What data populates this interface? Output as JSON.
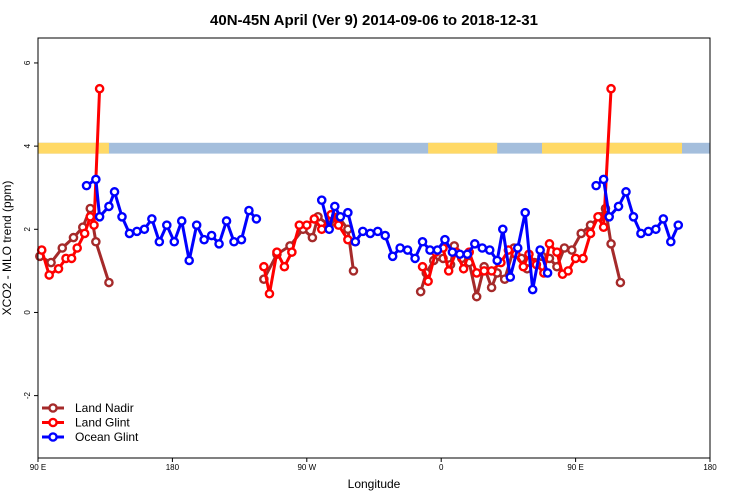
{
  "chart_data": {
    "type": "line",
    "title": "40N-45N April (Ver 9)   2014-09-06 to 2018-12-31",
    "xlabel": "Longitude",
    "ylabel": "XCO2 - MLO trend (ppm)",
    "xlim": [
      90,
      450
    ],
    "ylim": [
      -3.5,
      6.6
    ],
    "x_ticks": [
      {
        "value": 90,
        "label": "90 E"
      },
      {
        "value": 162,
        "label": "180"
      },
      {
        "value": 234,
        "label": "90 W"
      },
      {
        "value": 306,
        "label": "0"
      },
      {
        "value": 378,
        "label": "90 E"
      },
      {
        "value": 450,
        "label": "180"
      }
    ],
    "y_ticks": [
      {
        "value": -2,
        "label": "-2"
      },
      {
        "value": 0,
        "label": "0"
      },
      {
        "value": 2,
        "label": "2"
      },
      {
        "value": 4,
        "label": "4"
      },
      {
        "value": 6,
        "label": "6"
      }
    ],
    "land_band": {
      "y_low": 3.82,
      "y_high": 4.08,
      "land_color": "#ffd966",
      "ocean_color": "#a4bedc",
      "land_ranges": [
        [
          90,
          128
        ],
        [
          299,
          336
        ],
        [
          360,
          435
        ]
      ]
    },
    "legend_position": "bottom-left",
    "series": [
      {
        "name": "Land Nadir",
        "color": "#a52a2a",
        "points": [
          [
            91,
            1.35
          ],
          [
            97,
            1.2
          ],
          [
            103,
            1.55
          ],
          [
            109,
            1.8
          ],
          [
            114,
            2.05
          ],
          [
            118,
            2.5
          ],
          [
            121,
            1.7
          ],
          [
            128,
            0.72
          ],
          [
            null,
            null
          ],
          [
            211,
            0.8
          ],
          [
            218,
            1.4
          ],
          [
            225,
            1.6
          ],
          [
            232,
            2.0
          ],
          [
            237,
            1.8
          ],
          [
            240,
            2.3
          ],
          [
            246,
            2.1
          ],
          [
            251,
            2.3
          ],
          [
            256,
            2.0
          ],
          [
            259,
            1.0
          ],
          [
            null,
            null
          ],
          [
            295,
            0.5
          ],
          [
            298,
            0.95
          ],
          [
            302,
            1.25
          ],
          [
            307,
            1.3
          ],
          [
            311,
            1.15
          ],
          [
            313,
            1.6
          ],
          [
            317,
            1.3
          ],
          [
            321,
            1.2
          ],
          [
            325,
            0.38
          ],
          [
            329,
            1.1
          ],
          [
            333,
            0.6
          ],
          [
            336,
            0.95
          ],
          [
            340,
            0.8
          ],
          [
            345,
            1.55
          ],
          [
            349,
            1.3
          ],
          [
            352,
            1.05
          ],
          [
            356,
            1.2
          ],
          [
            360,
            1.35
          ],
          [
            364,
            1.3
          ],
          [
            368,
            1.1
          ],
          [
            372,
            1.55
          ],
          [
            376,
            1.5
          ],
          [
            381,
            1.9
          ],
          [
            386,
            2.1
          ],
          [
            391,
            2.3
          ],
          [
            394,
            2.5
          ],
          [
            397,
            1.65
          ],
          [
            402,
            0.72
          ]
        ]
      },
      {
        "name": "Land Glint",
        "color": "#ff0000",
        "points": [
          [
            92,
            1.5
          ],
          [
            96,
            0.9
          ],
          [
            101,
            1.05
          ],
          [
            105,
            1.3
          ],
          [
            108,
            1.3
          ],
          [
            111,
            1.55
          ],
          [
            115,
            1.9
          ],
          [
            118,
            2.3
          ],
          [
            120,
            2.1
          ],
          [
            123,
            5.38
          ],
          [
            null,
            null
          ],
          [
            211,
            1.1
          ],
          [
            214,
            0.45
          ],
          [
            218,
            1.45
          ],
          [
            222,
            1.1
          ],
          [
            226,
            1.45
          ],
          [
            230,
            2.1
          ],
          [
            234,
            2.1
          ],
          [
            238,
            2.25
          ],
          [
            242,
            2.0
          ],
          [
            247,
            2.35
          ],
          [
            251,
            2.1
          ],
          [
            256,
            1.75
          ],
          [
            260,
            1.7
          ],
          [
            null,
            null
          ],
          [
            296,
            1.1
          ],
          [
            299,
            0.75
          ],
          [
            303,
            1.45
          ],
          [
            307,
            1.55
          ],
          [
            310,
            1.0
          ],
          [
            314,
            1.45
          ],
          [
            318,
            1.05
          ],
          [
            321,
            1.45
          ],
          [
            325,
            0.95
          ],
          [
            329,
            1.0
          ],
          [
            333,
            1.0
          ],
          [
            338,
            1.2
          ],
          [
            342,
            1.5
          ],
          [
            346,
            1.4
          ],
          [
            350,
            1.1
          ],
          [
            353,
            1.4
          ],
          [
            357,
            1.15
          ],
          [
            361,
            0.95
          ],
          [
            364,
            1.65
          ],
          [
            368,
            1.45
          ],
          [
            371,
            0.92
          ],
          [
            374,
            1.0
          ],
          [
            378,
            1.3
          ],
          [
            382,
            1.3
          ],
          [
            386,
            1.9
          ],
          [
            390,
            2.3
          ],
          [
            393,
            2.05
          ],
          [
            397,
            5.38
          ]
        ]
      },
      {
        "name": "Ocean Glint",
        "color": "#0000ff",
        "points": [
          [
            116,
            3.05
          ],
          [
            121,
            3.2
          ],
          [
            123,
            2.3
          ],
          [
            128,
            2.55
          ],
          [
            131,
            2.9
          ],
          [
            135,
            2.3
          ],
          [
            139,
            1.9
          ],
          [
            143,
            1.95
          ],
          [
            147,
            2.0
          ],
          [
            151,
            2.25
          ],
          [
            155,
            1.7
          ],
          [
            159,
            2.1
          ],
          [
            163,
            1.7
          ],
          [
            167,
            2.2
          ],
          [
            171,
            1.25
          ],
          [
            175,
            2.1
          ],
          [
            179,
            1.75
          ],
          [
            183,
            1.85
          ],
          [
            187,
            1.65
          ],
          [
            191,
            2.2
          ],
          [
            195,
            1.7
          ],
          [
            199,
            1.75
          ],
          [
            203,
            2.45
          ],
          [
            207,
            2.25
          ],
          [
            null,
            null
          ],
          [
            242,
            2.7
          ],
          [
            246,
            2.0
          ],
          [
            249,
            2.55
          ],
          [
            252,
            2.3
          ],
          [
            256,
            2.4
          ],
          [
            260,
            1.7
          ],
          [
            264,
            1.95
          ],
          [
            268,
            1.9
          ],
          [
            272,
            1.95
          ],
          [
            276,
            1.85
          ],
          [
            280,
            1.35
          ],
          [
            284,
            1.55
          ],
          [
            288,
            1.5
          ],
          [
            292,
            1.3
          ],
          [
            296,
            1.7
          ],
          [
            300,
            1.5
          ],
          [
            304,
            1.5
          ],
          [
            308,
            1.75
          ],
          [
            312,
            1.45
          ],
          [
            316,
            1.4
          ],
          [
            320,
            1.4
          ],
          [
            324,
            1.65
          ],
          [
            328,
            1.55
          ],
          [
            332,
            1.5
          ],
          [
            336,
            1.25
          ],
          [
            339,
            2.0
          ],
          [
            343,
            0.85
          ],
          [
            347,
            1.55
          ],
          [
            351,
            2.4
          ],
          [
            355,
            0.55
          ],
          [
            359,
            1.5
          ],
          [
            363,
            0.95
          ],
          [
            null,
            null
          ],
          [
            389,
            3.05
          ],
          [
            393,
            3.2
          ],
          [
            396,
            2.3
          ],
          [
            401,
            2.55
          ],
          [
            405,
            2.9
          ],
          [
            409,
            2.3
          ],
          [
            413,
            1.9
          ],
          [
            417,
            1.95
          ],
          [
            421,
            2.0
          ],
          [
            425,
            2.25
          ],
          [
            429,
            1.7
          ],
          [
            433,
            2.1
          ]
        ]
      }
    ]
  }
}
